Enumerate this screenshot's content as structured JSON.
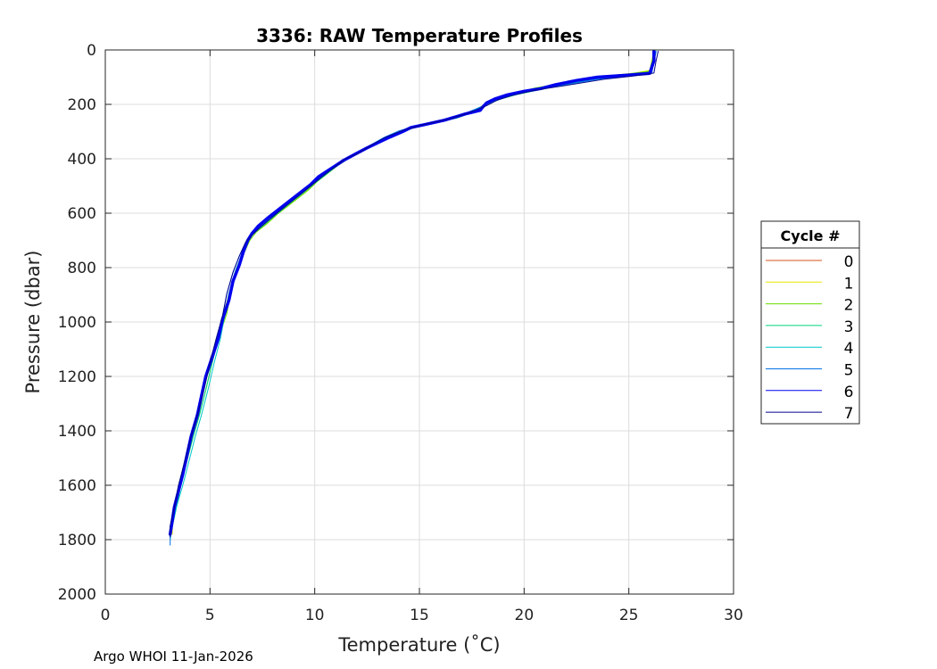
{
  "chart_data": {
    "type": "line",
    "title": "3336: RAW Temperature Profiles",
    "xlabel": "Temperature (˚C)",
    "ylabel": "Pressure (dbar)",
    "xlim": [
      0,
      30
    ],
    "ylim": [
      0,
      2000
    ],
    "y_reversed": true,
    "grid": true,
    "xticks": [
      "0",
      "5",
      "10",
      "15",
      "20",
      "25",
      "30"
    ],
    "yticks": [
      "0",
      "200",
      "400",
      "600",
      "800",
      "1000",
      "1200",
      "1400",
      "1600",
      "1800",
      "2000"
    ],
    "legend": {
      "title": "Cycle #",
      "placement": "right"
    },
    "series": [
      {
        "name": "0",
        "color": "#d95319",
        "width": 1,
        "points": []
      },
      {
        "name": "1",
        "color": "#e6e600",
        "width": 1,
        "points": [
          [
            26.2,
            5
          ],
          [
            26.1,
            40
          ],
          [
            26.0,
            75
          ],
          [
            25.3,
            85
          ],
          [
            24.0,
            95
          ],
          [
            22.5,
            115
          ],
          [
            21.0,
            135
          ],
          [
            20.0,
            150
          ],
          [
            19.0,
            168
          ],
          [
            18.5,
            185
          ],
          [
            18.0,
            205
          ],
          [
            17.5,
            230
          ],
          [
            16.5,
            255
          ],
          [
            15.0,
            275
          ],
          [
            14.0,
            300
          ],
          [
            13.2,
            330
          ],
          [
            12.5,
            360
          ],
          [
            12.0,
            385
          ],
          [
            11.3,
            410
          ],
          [
            10.8,
            440
          ],
          [
            10.3,
            470
          ],
          [
            9.9,
            500
          ],
          [
            9.4,
            530
          ],
          [
            8.9,
            560
          ],
          [
            8.4,
            590
          ],
          [
            8.0,
            620
          ],
          [
            7.5,
            650
          ],
          [
            7.0,
            680
          ],
          [
            6.8,
            710
          ],
          [
            6.5,
            760
          ],
          [
            6.2,
            820
          ],
          [
            5.9,
            900
          ],
          [
            5.6,
            980
          ],
          [
            5.3,
            1060
          ],
          [
            5.0,
            1150
          ],
          [
            4.7,
            1250
          ],
          [
            4.4,
            1340
          ],
          [
            4.1,
            1420
          ],
          [
            3.8,
            1510
          ],
          [
            3.5,
            1600
          ],
          [
            3.3,
            1680
          ],
          [
            3.2,
            1740
          ],
          [
            3.2,
            1780
          ]
        ]
      },
      {
        "name": "2",
        "color": "#66dd00",
        "width": 1,
        "points": [
          [
            26.2,
            5
          ],
          [
            26.1,
            40
          ],
          [
            26.0,
            78
          ],
          [
            25.0,
            88
          ],
          [
            23.5,
            100
          ],
          [
            22.0,
            120
          ],
          [
            20.5,
            140
          ],
          [
            19.5,
            160
          ],
          [
            18.8,
            178
          ],
          [
            18.3,
            195
          ],
          [
            17.8,
            220
          ],
          [
            17.0,
            245
          ],
          [
            16.0,
            265
          ],
          [
            14.8,
            285
          ],
          [
            13.8,
            310
          ],
          [
            13.0,
            340
          ],
          [
            12.3,
            370
          ],
          [
            11.7,
            395
          ],
          [
            11.1,
            425
          ],
          [
            10.6,
            455
          ],
          [
            10.1,
            485
          ],
          [
            9.7,
            515
          ],
          [
            9.2,
            545
          ],
          [
            8.7,
            575
          ],
          [
            8.2,
            605
          ],
          [
            7.7,
            640
          ],
          [
            7.2,
            670
          ],
          [
            6.9,
            700
          ],
          [
            6.6,
            750
          ],
          [
            6.3,
            810
          ],
          [
            6.0,
            890
          ],
          [
            5.8,
            970
          ],
          [
            5.4,
            1060
          ],
          [
            5.1,
            1150
          ],
          [
            4.8,
            1250
          ],
          [
            4.5,
            1340
          ],
          [
            4.2,
            1420
          ],
          [
            3.9,
            1510
          ],
          [
            3.6,
            1600
          ],
          [
            3.4,
            1680
          ],
          [
            3.2,
            1750
          ],
          [
            3.1,
            1790
          ]
        ]
      },
      {
        "name": "3",
        "color": "#00d27a",
        "width": 1,
        "points": [
          [
            26.3,
            5
          ],
          [
            26.2,
            45
          ],
          [
            26.1,
            80
          ],
          [
            25.2,
            90
          ],
          [
            23.8,
            102
          ],
          [
            22.2,
            125
          ],
          [
            20.8,
            145
          ],
          [
            19.7,
            163
          ],
          [
            18.9,
            180
          ],
          [
            18.2,
            200
          ],
          [
            17.6,
            225
          ],
          [
            16.8,
            250
          ],
          [
            15.6,
            270
          ],
          [
            14.5,
            290
          ],
          [
            13.6,
            315
          ],
          [
            12.9,
            345
          ],
          [
            12.2,
            375
          ],
          [
            11.5,
            400
          ],
          [
            11.0,
            430
          ],
          [
            10.5,
            460
          ],
          [
            10.0,
            490
          ],
          [
            9.5,
            522
          ],
          [
            9.0,
            552
          ],
          [
            8.5,
            583
          ],
          [
            8.0,
            615
          ],
          [
            7.5,
            648
          ],
          [
            7.0,
            678
          ],
          [
            6.8,
            705
          ],
          [
            6.5,
            755
          ],
          [
            6.2,
            815
          ],
          [
            5.9,
            895
          ],
          [
            5.7,
            975
          ],
          [
            5.4,
            1060
          ],
          [
            5.1,
            1150
          ],
          [
            4.8,
            1250
          ],
          [
            4.5,
            1340
          ],
          [
            4.2,
            1420
          ],
          [
            3.9,
            1510
          ],
          [
            3.6,
            1600
          ],
          [
            3.4,
            1680
          ],
          [
            3.2,
            1750
          ],
          [
            3.1,
            1790
          ]
        ]
      },
      {
        "name": "4",
        "color": "#00c8c8",
        "width": 1,
        "points": [
          [
            26.2,
            5
          ],
          [
            26.2,
            40
          ],
          [
            26.0,
            82
          ],
          [
            25.0,
            92
          ],
          [
            23.5,
            106
          ],
          [
            21.8,
            128
          ],
          [
            20.4,
            148
          ],
          [
            19.4,
            166
          ],
          [
            18.7,
            183
          ],
          [
            18.1,
            203
          ],
          [
            17.4,
            228
          ],
          [
            16.5,
            252
          ],
          [
            15.3,
            272
          ],
          [
            14.3,
            293
          ],
          [
            13.5,
            318
          ],
          [
            12.8,
            348
          ],
          [
            12.1,
            377
          ],
          [
            11.4,
            402
          ],
          [
            10.9,
            432
          ],
          [
            10.4,
            462
          ],
          [
            9.9,
            493
          ],
          [
            9.4,
            525
          ],
          [
            8.9,
            555
          ],
          [
            8.4,
            586
          ],
          [
            7.9,
            618
          ],
          [
            7.4,
            650
          ],
          [
            7.0,
            680
          ],
          [
            6.8,
            706
          ],
          [
            6.5,
            756
          ],
          [
            6.2,
            816
          ],
          [
            5.9,
            896
          ],
          [
            5.7,
            976
          ],
          [
            5.5,
            1060
          ],
          [
            5.2,
            1150
          ],
          [
            4.9,
            1250
          ],
          [
            4.6,
            1340
          ],
          [
            4.3,
            1420
          ],
          [
            4.0,
            1510
          ],
          [
            3.7,
            1600
          ],
          [
            3.4,
            1680
          ],
          [
            3.2,
            1750
          ],
          [
            3.1,
            1800
          ]
        ]
      },
      {
        "name": "5",
        "color": "#0072e6",
        "width": 1,
        "points": [
          [
            26.3,
            5
          ],
          [
            26.2,
            40
          ],
          [
            26.1,
            84
          ],
          [
            25.1,
            95
          ],
          [
            23.5,
            108
          ],
          [
            21.7,
            130
          ],
          [
            20.2,
            152
          ],
          [
            19.2,
            170
          ],
          [
            18.5,
            187
          ],
          [
            18.0,
            208
          ],
          [
            17.2,
            232
          ],
          [
            16.2,
            256
          ],
          [
            15.0,
            276
          ],
          [
            14.0,
            298
          ],
          [
            13.3,
            322
          ],
          [
            12.6,
            352
          ],
          [
            12.0,
            380
          ],
          [
            11.3,
            405
          ],
          [
            10.8,
            435
          ],
          [
            10.3,
            465
          ],
          [
            9.9,
            495
          ],
          [
            9.4,
            527
          ],
          [
            8.9,
            557
          ],
          [
            8.4,
            588
          ],
          [
            7.9,
            620
          ],
          [
            7.4,
            652
          ],
          [
            7.0,
            682
          ],
          [
            6.7,
            708
          ],
          [
            6.4,
            758
          ],
          [
            6.1,
            818
          ],
          [
            5.8,
            898
          ],
          [
            5.6,
            978
          ],
          [
            5.3,
            1060
          ],
          [
            5.0,
            1150
          ],
          [
            4.7,
            1250
          ],
          [
            4.4,
            1340
          ],
          [
            4.1,
            1420
          ],
          [
            3.8,
            1510
          ],
          [
            3.5,
            1600
          ],
          [
            3.3,
            1680
          ],
          [
            3.1,
            1750
          ],
          [
            3.1,
            1820
          ]
        ]
      },
      {
        "name": "6",
        "color": "#0000ee",
        "width": 3.5,
        "points": [
          [
            26.2,
            5
          ],
          [
            26.2,
            40
          ],
          [
            26.0,
            86
          ],
          [
            25.0,
            92
          ],
          [
            23.5,
            100
          ],
          [
            22.5,
            112
          ],
          [
            21.5,
            128
          ],
          [
            20.8,
            142
          ],
          [
            20.0,
            152
          ],
          [
            19.2,
            165
          ],
          [
            18.6,
            180
          ],
          [
            18.2,
            195
          ],
          [
            18.0,
            212
          ],
          [
            17.9,
            222
          ],
          [
            17.2,
            235
          ],
          [
            16.2,
            258
          ],
          [
            15.2,
            275
          ],
          [
            14.6,
            285
          ],
          [
            14.2,
            300
          ],
          [
            13.6,
            320
          ],
          [
            13.1,
            338
          ],
          [
            12.5,
            360
          ],
          [
            12.0,
            380
          ],
          [
            11.4,
            405
          ],
          [
            10.8,
            435
          ],
          [
            10.2,
            465
          ],
          [
            9.8,
            495
          ],
          [
            9.3,
            525
          ],
          [
            8.8,
            555
          ],
          [
            8.3,
            585
          ],
          [
            7.8,
            615
          ],
          [
            7.3,
            648
          ],
          [
            7.0,
            675
          ],
          [
            6.8,
            700
          ],
          [
            6.6,
            740
          ],
          [
            6.4,
            790
          ],
          [
            6.1,
            850
          ],
          [
            5.9,
            920
          ],
          [
            5.6,
            990
          ],
          [
            5.4,
            1060
          ],
          [
            5.1,
            1130
          ],
          [
            4.8,
            1200
          ],
          [
            4.6,
            1270
          ],
          [
            4.4,
            1340
          ],
          [
            4.1,
            1420
          ],
          [
            3.9,
            1490
          ],
          [
            3.7,
            1560
          ],
          [
            3.5,
            1620
          ],
          [
            3.3,
            1680
          ],
          [
            3.2,
            1730
          ],
          [
            3.1,
            1780
          ]
        ]
      },
      {
        "name": "7",
        "color": "#00008b",
        "width": 1,
        "points": [
          [
            26.4,
            5
          ],
          [
            26.3,
            40
          ],
          [
            26.2,
            85
          ],
          [
            25.2,
            96
          ],
          [
            23.8,
            108
          ],
          [
            22.0,
            130
          ],
          [
            20.5,
            148
          ],
          [
            19.4,
            168
          ],
          [
            18.7,
            185
          ],
          [
            18.2,
            205
          ],
          [
            17.4,
            230
          ],
          [
            16.4,
            254
          ],
          [
            15.2,
            274
          ],
          [
            14.2,
            296
          ],
          [
            13.4,
            320
          ],
          [
            12.7,
            350
          ],
          [
            12.1,
            378
          ],
          [
            11.4,
            403
          ],
          [
            10.9,
            433
          ],
          [
            10.4,
            463
          ],
          [
            9.9,
            494
          ],
          [
            9.4,
            525
          ],
          [
            8.9,
            556
          ],
          [
            8.4,
            587
          ],
          [
            7.9,
            619
          ],
          [
            7.4,
            651
          ],
          [
            7.0,
            681
          ],
          [
            6.7,
            707
          ],
          [
            6.4,
            757
          ],
          [
            6.1,
            817
          ],
          [
            5.8,
            897
          ],
          [
            5.6,
            977
          ],
          [
            5.3,
            1060
          ],
          [
            5.0,
            1150
          ],
          [
            4.7,
            1250
          ],
          [
            4.4,
            1340
          ],
          [
            4.1,
            1420
          ],
          [
            3.8,
            1510
          ],
          [
            3.5,
            1600
          ],
          [
            3.3,
            1680
          ],
          [
            3.1,
            1750
          ],
          [
            3.1,
            1790
          ]
        ]
      }
    ]
  },
  "footer": {
    "text": "Argo WHOI 11-Jan-2026"
  }
}
